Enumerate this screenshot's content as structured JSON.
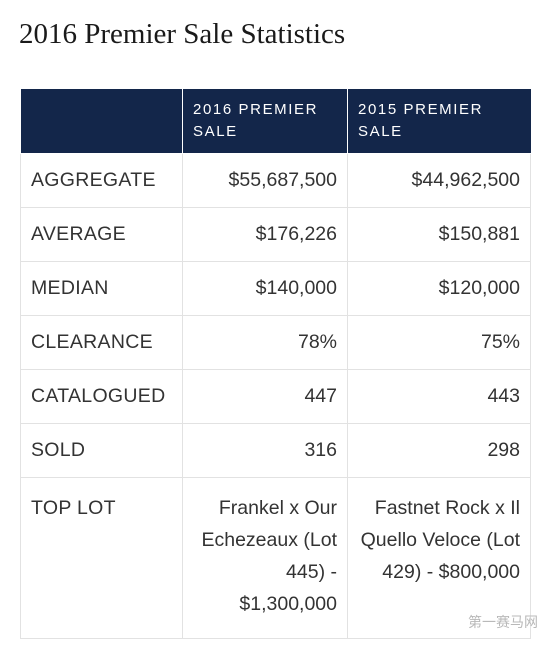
{
  "title": "2016 Premier Sale Statistics",
  "table": {
    "headers": [
      "",
      "2016 PREMIER SALE",
      "2015 PREMIER SALE"
    ],
    "rows": [
      {
        "label": "AGGREGATE",
        "v2016": "$55,687,500",
        "v2015": "$44,962,500"
      },
      {
        "label": "AVERAGE",
        "v2016": "$176,226",
        "v2015": "$150,881"
      },
      {
        "label": "MEDIAN",
        "v2016": "$140,000",
        "v2015": "$120,000"
      },
      {
        "label": "CLEARANCE",
        "v2016": "78%",
        "v2015": "75%"
      },
      {
        "label": "CATALOGUED",
        "v2016": "447",
        "v2015": "443"
      },
      {
        "label": "SOLD",
        "v2016": "316",
        "v2015": "298"
      },
      {
        "label": "TOP LOT",
        "v2016": "Frankel x Our Echezeaux (Lot 445) - $1,300,000",
        "v2015": "Fastnet Rock x Il Quello Veloce (Lot 429) - $800,000"
      }
    ]
  },
  "watermark": "第一赛马网",
  "colors": {
    "header_bg": "#13264a",
    "border": "#e2e2e2",
    "text": "#333333"
  }
}
